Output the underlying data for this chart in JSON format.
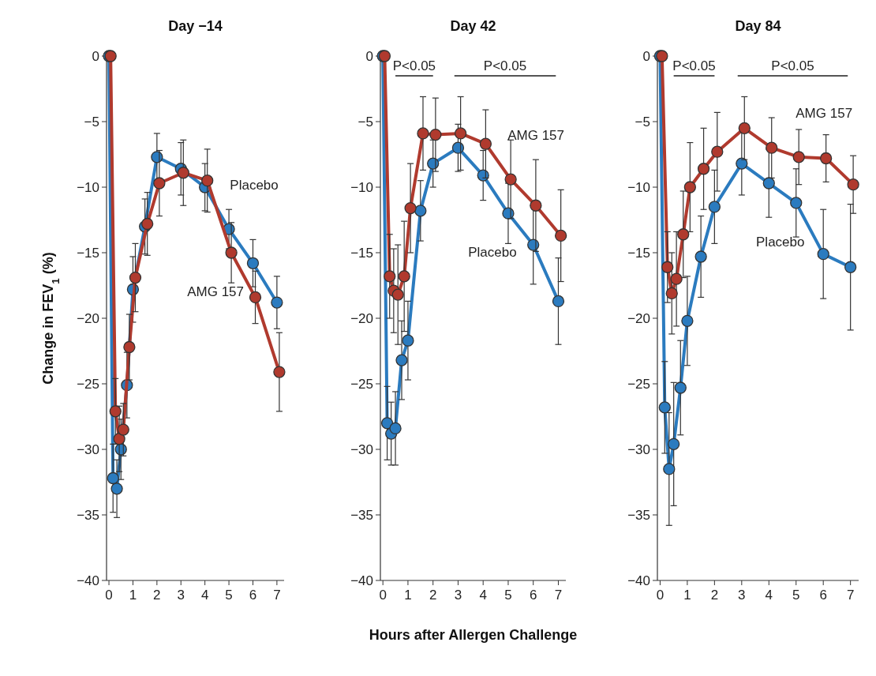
{
  "chart_data": [
    {
      "type": "line",
      "title": "Day −14",
      "ylabel": "Change in FEV$_{1}$ (%)",
      "xlim": [
        -0.1,
        7.3
      ],
      "xticks": [
        0,
        1,
        2,
        3,
        4,
        5,
        6,
        7
      ],
      "ylim": [
        -40,
        0
      ],
      "yticks": [
        -40,
        -35,
        -30,
        -25,
        -20,
        -15,
        -10,
        -5,
        0
      ],
      "marker": "circle",
      "grid": false,
      "series": [
        {
          "name": "Placebo",
          "color": "#2b7bbf",
          "x": [
            0,
            0.17,
            0.33,
            0.5,
            0.75,
            1,
            1.5,
            2,
            3,
            4,
            5,
            6,
            7
          ],
          "values": [
            0,
            -32.2,
            -33,
            -30,
            -25.1,
            -17.8,
            -13,
            -7.7,
            -8.6,
            -10,
            -13.2,
            -15.8,
            -18.8
          ],
          "errors": [
            null,
            2.6,
            2.2,
            2.3,
            2.5,
            2.5,
            2.1,
            1.8,
            2.0,
            1.8,
            1.5,
            1.8,
            2.0
          ]
        },
        {
          "name": "AMG 157",
          "color": "#b03a2e",
          "x": [
            0.07,
            0.27,
            0.43,
            0.6,
            0.85,
            1.1,
            1.6,
            2.1,
            3.1,
            4.1,
            5.1,
            6.1,
            7.1
          ],
          "values": [
            0,
            -27.1,
            -29.2,
            -28.5,
            -22.2,
            -16.9,
            -12.8,
            -9.7,
            -8.9,
            -9.5,
            -15,
            -18.4,
            -24.1
          ],
          "errors": [
            null,
            2.5,
            2.5,
            2.0,
            2.5,
            2.6,
            2.4,
            2.5,
            2.5,
            2.4,
            2.3,
            2.0,
            3.0
          ]
        }
      ]
    },
    {
      "type": "line",
      "title": "Day 42",
      "xlabel": "Hours after Allergen Challenge",
      "xlim": [
        -0.1,
        7.3
      ],
      "xticks": [
        0,
        1,
        2,
        3,
        4,
        5,
        6,
        7
      ],
      "ylim": [
        -40,
        0
      ],
      "yticks": [
        -40,
        -35,
        -30,
        -25,
        -20,
        -15,
        -10,
        -5,
        0
      ],
      "marker": "circle",
      "grid": false,
      "annotations": [
        "P<0.05",
        "P<0.05"
      ],
      "series": [
        {
          "name": "Placebo",
          "color": "#2b7bbf",
          "x": [
            0,
            0.17,
            0.33,
            0.5,
            0.75,
            1,
            1.5,
            2,
            3,
            4,
            5,
            6,
            7
          ],
          "values": [
            0,
            -28,
            -28.8,
            -28.4,
            -23.2,
            -21.7,
            -11.8,
            -8.2,
            -7.0,
            -9.1,
            -12.0,
            -14.4,
            -18.7
          ],
          "errors": [
            null,
            2.8,
            2.4,
            2.8,
            3.0,
            3.0,
            2.3,
            1.8,
            1.8,
            1.9,
            2.3,
            3.0,
            3.3
          ]
        },
        {
          "name": "AMG 157",
          "color": "#b03a2e",
          "x": [
            0.07,
            0.27,
            0.43,
            0.6,
            0.85,
            1.1,
            1.6,
            2.1,
            3.1,
            4.1,
            5.1,
            6.1,
            7.1
          ],
          "values": [
            0,
            -16.8,
            -17.9,
            -18.2,
            -16.8,
            -11.6,
            -5.9,
            -6.0,
            -5.9,
            -6.7,
            -9.4,
            -11.4,
            -13.7
          ],
          "errors": [
            null,
            3.2,
            3.2,
            3.8,
            4.2,
            3.4,
            2.8,
            2.8,
            2.8,
            2.6,
            3.0,
            3.5,
            3.5
          ]
        }
      ]
    },
    {
      "type": "line",
      "title": "Day 84",
      "xlim": [
        -0.1,
        7.3
      ],
      "xticks": [
        0,
        1,
        2,
        3,
        4,
        5,
        6,
        7
      ],
      "ylim": [
        -40,
        0
      ],
      "yticks": [
        -40,
        -35,
        -30,
        -25,
        -20,
        -15,
        -10,
        -5,
        0
      ],
      "marker": "circle",
      "grid": false,
      "annotations": [
        "P<0.05",
        "P<0.05"
      ],
      "series": [
        {
          "name": "Placebo",
          "color": "#2b7bbf",
          "x": [
            0,
            0.17,
            0.33,
            0.5,
            0.75,
            1,
            1.5,
            2,
            3,
            4,
            5,
            6,
            7
          ],
          "values": [
            0,
            -26.8,
            -31.5,
            -29.6,
            -25.3,
            -20.2,
            -15.3,
            -11.5,
            -8.2,
            -9.7,
            -11.2,
            -15.1,
            -16.1
          ],
          "errors": [
            null,
            3.5,
            4.3,
            4.7,
            3.6,
            3.4,
            3.1,
            2.8,
            2.4,
            2.6,
            2.6,
            3.4,
            4.8
          ]
        },
        {
          "name": "AMG 157",
          "color": "#b03a2e",
          "x": [
            0.07,
            0.27,
            0.43,
            0.6,
            0.85,
            1.1,
            1.6,
            2.1,
            3.1,
            4.1,
            5.1,
            6.1,
            7.1
          ],
          "values": [
            0,
            -16.1,
            -18.1,
            -17.0,
            -13.6,
            -10.0,
            -8.6,
            -7.3,
            -5.5,
            -7.0,
            -7.7,
            -7.8,
            -9.8
          ],
          "errors": [
            null,
            2.7,
            3.1,
            3.6,
            3.3,
            3.4,
            3.1,
            3.0,
            2.4,
            2.3,
            2.1,
            1.8,
            2.2
          ]
        }
      ]
    }
  ]
}
